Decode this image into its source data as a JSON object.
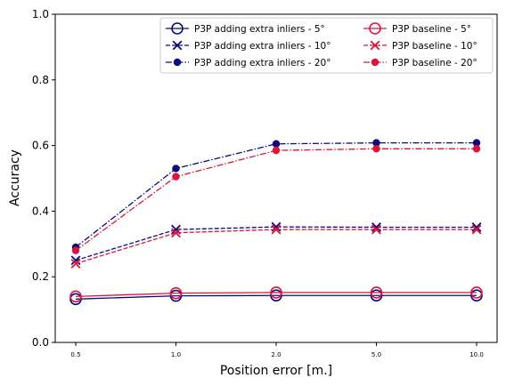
{
  "chart_data": {
    "type": "line",
    "title": "",
    "xlabel": "Position error [m.]",
    "ylabel": "Accuracy",
    "categories": [
      "0.5",
      "1.0",
      "2.0",
      "5.0",
      "10.0"
    ],
    "ylim": [
      0.0,
      1.0
    ],
    "yticks": [
      "0.0",
      "0.2",
      "0.4",
      "0.6",
      "0.8",
      "1.0"
    ],
    "grid": false,
    "legend": {
      "position": "top-right",
      "columns": 2
    },
    "series": [
      {
        "name": "P3P adding extra inliers - 5°",
        "color": "#0b0b7a",
        "dash": "solid",
        "marker": "circle-open",
        "values": [
          0.132,
          0.142,
          0.143,
          0.143,
          0.143
        ]
      },
      {
        "name": "P3P adding extra inliers - 10°",
        "color": "#0b0b7a",
        "dash": "dashed",
        "marker": "x",
        "values": [
          0.25,
          0.344,
          0.352,
          0.351,
          0.351
        ]
      },
      {
        "name": "P3P adding extra inliers - 20°",
        "color": "#0b0b7a",
        "dash": "dashdot",
        "marker": "circle-filled",
        "values": [
          0.29,
          0.53,
          0.605,
          0.608,
          0.608
        ]
      },
      {
        "name": "P3P baseline - 5°",
        "color": "#dc143c",
        "dash": "solid",
        "marker": "circle-open",
        "values": [
          0.14,
          0.15,
          0.152,
          0.152,
          0.152
        ]
      },
      {
        "name": "P3P baseline - 10°",
        "color": "#dc143c",
        "dash": "dashed",
        "marker": "x",
        "values": [
          0.24,
          0.334,
          0.344,
          0.344,
          0.344
        ]
      },
      {
        "name": "P3P baseline - 20°",
        "color": "#dc143c",
        "dash": "dashdot",
        "marker": "circle-filled",
        "values": [
          0.28,
          0.505,
          0.585,
          0.59,
          0.59
        ]
      }
    ]
  }
}
